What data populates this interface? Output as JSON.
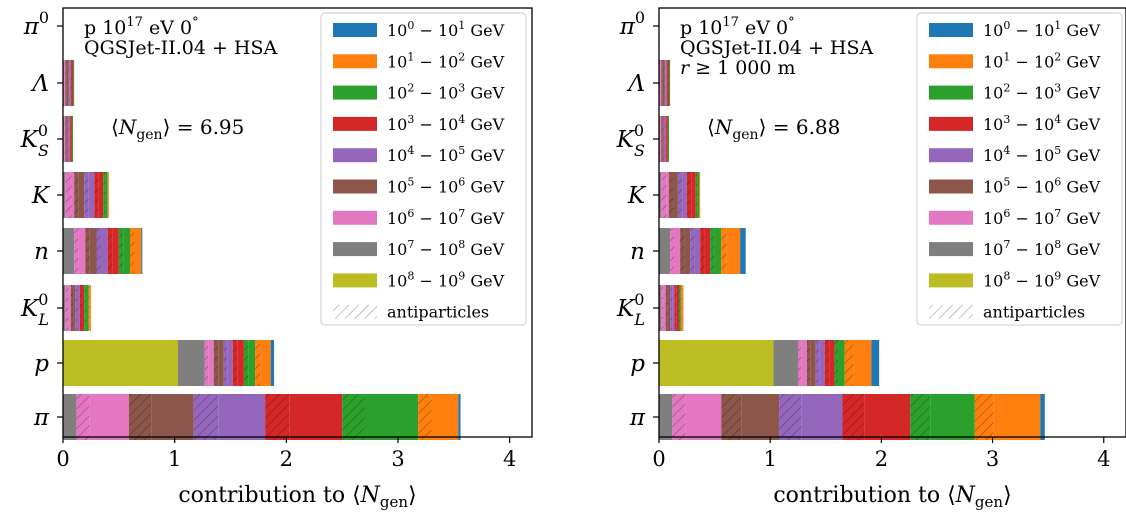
{
  "legend": {
    "bins": [
      "10⁰ − 10¹ GeV",
      "10¹ − 10² GeV",
      "10² − 10³ GeV",
      "10³ − 10⁴ GeV",
      "10⁴ − 10⁵ GeV",
      "10⁵ − 10⁶ GeV",
      "10⁶ − 10⁷ GeV",
      "10⁷ − 10⁸ GeV",
      "10⁸ − 10⁹ GeV"
    ],
    "antiparticles_label": "antiparticles",
    "colors": [
      "#1f77b4",
      "#ff7f0e",
      "#2ca02c",
      "#d62728",
      "#9467bd",
      "#8c564b",
      "#e377c2",
      "#7f7f7f",
      "#bcbd22"
    ]
  },
  "chart_data": [
    {
      "type": "bar",
      "orientation": "horizontal",
      "stacked": true,
      "annotations": [
        "p 10¹⁷ eV 0°",
        "QGSJet-II.04 + HSA"
      ],
      "mean_label": "⟨N_gen⟩ = 6.95",
      "xlabel": "contribution to ⟨N_gen⟩",
      "xlim": [
        0,
        4.2
      ],
      "xticks": [
        "0",
        "1",
        "2",
        "3",
        "4"
      ],
      "categories": [
        "π",
        "p",
        "K⁰_L",
        "n",
        "K",
        "K⁰_S",
        "Λ",
        "π⁰"
      ],
      "segments_order_low_to_high_energy_reversed": "segments are listed left-to-right as drawn: [bin_index, value, is_antiparticle]",
      "bars": [
        [
          [
            7,
            0.12,
            false
          ],
          [
            6,
            0.12,
            true
          ],
          [
            6,
            0.35,
            false
          ],
          [
            5,
            0.2,
            true
          ],
          [
            5,
            0.38,
            false
          ],
          [
            4,
            0.22,
            true
          ],
          [
            4,
            0.42,
            false
          ],
          [
            3,
            0.22,
            true
          ],
          [
            3,
            0.47,
            false
          ],
          [
            2,
            0.2,
            true
          ],
          [
            2,
            0.48,
            false
          ],
          [
            1,
            0.12,
            true
          ],
          [
            1,
            0.24,
            false
          ],
          [
            0,
            0.02,
            false
          ]
        ],
        [
          [
            8,
            1.03,
            false
          ],
          [
            7,
            0.24,
            false
          ],
          [
            6,
            0.03,
            true
          ],
          [
            6,
            0.05,
            false
          ],
          [
            5,
            0.04,
            true
          ],
          [
            5,
            0.05,
            false
          ],
          [
            4,
            0.03,
            true
          ],
          [
            4,
            0.05,
            false
          ],
          [
            3,
            0.04,
            true
          ],
          [
            3,
            0.06,
            false
          ],
          [
            2,
            0.04,
            true
          ],
          [
            2,
            0.06,
            false
          ],
          [
            1,
            0.05,
            true
          ],
          [
            1,
            0.09,
            false
          ],
          [
            0,
            0.03,
            false
          ]
        ],
        [
          [
            7,
            0.02,
            false
          ],
          [
            6,
            0.03,
            true
          ],
          [
            6,
            0.02,
            false
          ],
          [
            5,
            0.02,
            true
          ],
          [
            5,
            0.02,
            false
          ],
          [
            4,
            0.02,
            true
          ],
          [
            4,
            0.02,
            false
          ],
          [
            3,
            0.02,
            true
          ],
          [
            3,
            0.02,
            false
          ],
          [
            2,
            0.02,
            true
          ],
          [
            2,
            0.02,
            false
          ],
          [
            1,
            0.01,
            true
          ],
          [
            1,
            0.01,
            false
          ]
        ],
        [
          [
            7,
            0.1,
            false
          ],
          [
            6,
            0.04,
            true
          ],
          [
            6,
            0.06,
            false
          ],
          [
            5,
            0.04,
            true
          ],
          [
            5,
            0.06,
            false
          ],
          [
            4,
            0.04,
            true
          ],
          [
            4,
            0.06,
            false
          ],
          [
            3,
            0.04,
            true
          ],
          [
            3,
            0.06,
            false
          ],
          [
            2,
            0.04,
            true
          ],
          [
            2,
            0.06,
            false
          ],
          [
            1,
            0.04,
            true
          ],
          [
            1,
            0.06,
            false
          ],
          [
            0,
            0.01,
            false
          ]
        ],
        [
          [
            7,
            0.02,
            false
          ],
          [
            6,
            0.06,
            true
          ],
          [
            6,
            0.02,
            false
          ],
          [
            5,
            0.04,
            true
          ],
          [
            5,
            0.05,
            false
          ],
          [
            4,
            0.04,
            true
          ],
          [
            4,
            0.05,
            false
          ],
          [
            3,
            0.04,
            true
          ],
          [
            3,
            0.04,
            false
          ],
          [
            2,
            0.02,
            true
          ],
          [
            2,
            0.02,
            false
          ],
          [
            1,
            0.01,
            false
          ]
        ],
        [
          [
            6,
            0.01,
            true
          ],
          [
            6,
            0.01,
            false
          ],
          [
            5,
            0.01,
            true
          ],
          [
            5,
            0.01,
            false
          ],
          [
            4,
            0.01,
            true
          ],
          [
            4,
            0.01,
            false
          ],
          [
            3,
            0.01,
            true
          ],
          [
            3,
            0.01,
            false
          ],
          [
            2,
            0.01,
            false
          ]
        ],
        [
          [
            6,
            0.01,
            true
          ],
          [
            6,
            0.01,
            false
          ],
          [
            5,
            0.01,
            true
          ],
          [
            5,
            0.02,
            false
          ],
          [
            4,
            0.01,
            true
          ],
          [
            4,
            0.01,
            false
          ],
          [
            3,
            0.01,
            true
          ],
          [
            3,
            0.01,
            false
          ],
          [
            2,
            0.01,
            false
          ]
        ],
        []
      ]
    },
    {
      "type": "bar",
      "orientation": "horizontal",
      "stacked": true,
      "annotations": [
        "p 10¹⁷ eV 0°",
        "QGSJet-II.04 + HSA",
        "r ≥ 1 000 m"
      ],
      "mean_label": "⟨N_gen⟩ = 6.88",
      "xlabel": "contribution to ⟨N_gen⟩",
      "xlim": [
        0,
        4.2
      ],
      "xticks": [
        "0",
        "1",
        "2",
        "3",
        "4"
      ],
      "categories": [
        "π",
        "p",
        "K⁰_L",
        "n",
        "K",
        "K⁰_S",
        "Λ",
        "π⁰"
      ],
      "bars": [
        [
          [
            7,
            0.12,
            false
          ],
          [
            6,
            0.12,
            true
          ],
          [
            6,
            0.32,
            false
          ],
          [
            5,
            0.18,
            true
          ],
          [
            5,
            0.34,
            false
          ],
          [
            4,
            0.2,
            true
          ],
          [
            4,
            0.37,
            false
          ],
          [
            3,
            0.2,
            true
          ],
          [
            3,
            0.41,
            false
          ],
          [
            2,
            0.18,
            true
          ],
          [
            2,
            0.4,
            false
          ],
          [
            1,
            0.17,
            true
          ],
          [
            1,
            0.42,
            false
          ],
          [
            0,
            0.04,
            false
          ]
        ],
        [
          [
            8,
            1.03,
            false
          ],
          [
            7,
            0.22,
            false
          ],
          [
            6,
            0.03,
            true
          ],
          [
            6,
            0.05,
            false
          ],
          [
            5,
            0.03,
            true
          ],
          [
            5,
            0.05,
            false
          ],
          [
            4,
            0.03,
            true
          ],
          [
            4,
            0.05,
            false
          ],
          [
            3,
            0.04,
            true
          ],
          [
            3,
            0.05,
            false
          ],
          [
            2,
            0.03,
            true
          ],
          [
            2,
            0.06,
            false
          ],
          [
            1,
            0.08,
            true
          ],
          [
            1,
            0.16,
            false
          ],
          [
            0,
            0.07,
            false
          ]
        ],
        [
          [
            7,
            0.02,
            false
          ],
          [
            6,
            0.02,
            true
          ],
          [
            6,
            0.02,
            false
          ],
          [
            5,
            0.02,
            true
          ],
          [
            5,
            0.02,
            false
          ],
          [
            4,
            0.02,
            true
          ],
          [
            4,
            0.02,
            false
          ],
          [
            3,
            0.02,
            true
          ],
          [
            3,
            0.02,
            false
          ],
          [
            2,
            0.01,
            true
          ],
          [
            2,
            0.01,
            false
          ],
          [
            1,
            0.01,
            true
          ],
          [
            1,
            0.01,
            false
          ]
        ],
        [
          [
            7,
            0.1,
            false
          ],
          [
            6,
            0.04,
            true
          ],
          [
            6,
            0.05,
            false
          ],
          [
            5,
            0.04,
            true
          ],
          [
            5,
            0.05,
            false
          ],
          [
            4,
            0.04,
            true
          ],
          [
            4,
            0.05,
            false
          ],
          [
            3,
            0.04,
            true
          ],
          [
            3,
            0.05,
            false
          ],
          [
            2,
            0.04,
            true
          ],
          [
            2,
            0.06,
            false
          ],
          [
            1,
            0.05,
            true
          ],
          [
            1,
            0.12,
            false
          ],
          [
            0,
            0.05,
            false
          ]
        ],
        [
          [
            7,
            0.02,
            false
          ],
          [
            6,
            0.05,
            true
          ],
          [
            6,
            0.02,
            false
          ],
          [
            5,
            0.04,
            true
          ],
          [
            5,
            0.04,
            false
          ],
          [
            4,
            0.04,
            true
          ],
          [
            4,
            0.04,
            false
          ],
          [
            3,
            0.04,
            true
          ],
          [
            3,
            0.04,
            false
          ],
          [
            2,
            0.02,
            true
          ],
          [
            2,
            0.01,
            false
          ],
          [
            1,
            0.01,
            false
          ]
        ],
        [
          [
            6,
            0.01,
            true
          ],
          [
            6,
            0.01,
            false
          ],
          [
            5,
            0.01,
            true
          ],
          [
            5,
            0.01,
            false
          ],
          [
            4,
            0.01,
            true
          ],
          [
            4,
            0.01,
            false
          ],
          [
            3,
            0.01,
            true
          ],
          [
            3,
            0.01,
            false
          ],
          [
            2,
            0.01,
            false
          ]
        ],
        [
          [
            6,
            0.01,
            true
          ],
          [
            6,
            0.01,
            false
          ],
          [
            5,
            0.01,
            true
          ],
          [
            5,
            0.02,
            false
          ],
          [
            4,
            0.01,
            true
          ],
          [
            4,
            0.01,
            false
          ],
          [
            3,
            0.01,
            true
          ],
          [
            3,
            0.01,
            false
          ],
          [
            2,
            0.01,
            false
          ]
        ],
        []
      ]
    }
  ]
}
